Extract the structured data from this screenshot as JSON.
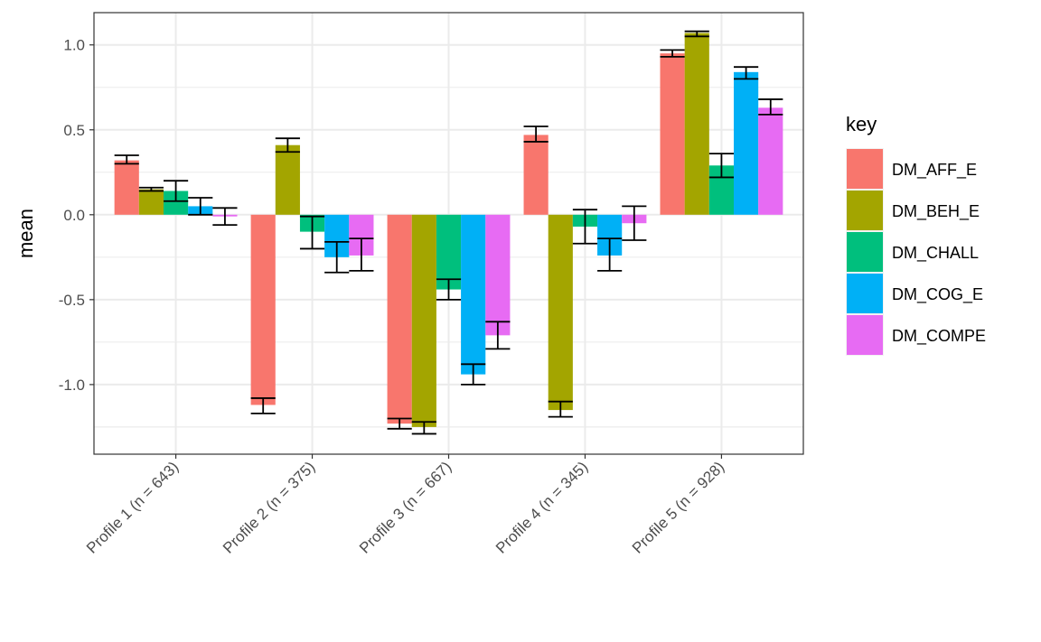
{
  "chart_data": {
    "type": "bar",
    "categories": [
      "Profile 1 (n = 643)",
      "Profile 2 (n = 375)",
      "Profile 3 (n = 667)",
      "Profile 4 (n = 345)",
      "Profile 5 (n = 928)"
    ],
    "series": [
      {
        "name": "DM_AFF_E",
        "color": "#F8766D",
        "values": [
          0.32,
          -1.12,
          -1.23,
          0.47,
          0.95
        ],
        "err_low": [
          0.3,
          -1.17,
          -1.26,
          0.43,
          0.93
        ],
        "err_high": [
          0.35,
          -1.08,
          -1.2,
          0.52,
          0.97
        ]
      },
      {
        "name": "DM_BEH_E",
        "color": "#A3A500",
        "values": [
          0.15,
          0.41,
          -1.25,
          -1.15,
          1.07
        ],
        "err_low": [
          0.14,
          0.37,
          -1.29,
          -1.19,
          1.05
        ],
        "err_high": [
          0.16,
          0.45,
          -1.22,
          -1.1,
          1.08
        ]
      },
      {
        "name": "DM_CHALL",
        "color": "#00BF7D",
        "values": [
          0.14,
          -0.1,
          -0.44,
          -0.07,
          0.29
        ],
        "err_low": [
          0.08,
          -0.2,
          -0.5,
          -0.17,
          0.22
        ],
        "err_high": [
          0.2,
          -0.01,
          -0.38,
          0.03,
          0.36
        ]
      },
      {
        "name": "DM_COG_E",
        "color": "#00B0F6",
        "values": [
          0.05,
          -0.25,
          -0.94,
          -0.24,
          0.84
        ],
        "err_low": [
          0.0,
          -0.34,
          -1.0,
          -0.33,
          0.8
        ],
        "err_high": [
          0.1,
          -0.16,
          -0.88,
          -0.14,
          0.87
        ]
      },
      {
        "name": "DM_COMPE",
        "color": "#E76BF3",
        "values": [
          -0.01,
          -0.24,
          -0.71,
          -0.05,
          0.63
        ],
        "err_low": [
          -0.06,
          -0.33,
          -0.79,
          -0.15,
          0.59
        ],
        "err_high": [
          0.04,
          -0.14,
          -0.63,
          0.05,
          0.68
        ]
      }
    ],
    "ylabel": "mean",
    "xlabel": "",
    "ylim": [
      -1.41,
      1.19
    ],
    "yticks": [
      1.0,
      0.5,
      0.0,
      -0.5,
      -1.0
    ],
    "ytick_labels": [
      "1.0",
      "0.5",
      "0.0",
      "-0.5",
      "-1.0"
    ],
    "grid": true,
    "legend": {
      "title": "key",
      "placement": "right"
    }
  }
}
